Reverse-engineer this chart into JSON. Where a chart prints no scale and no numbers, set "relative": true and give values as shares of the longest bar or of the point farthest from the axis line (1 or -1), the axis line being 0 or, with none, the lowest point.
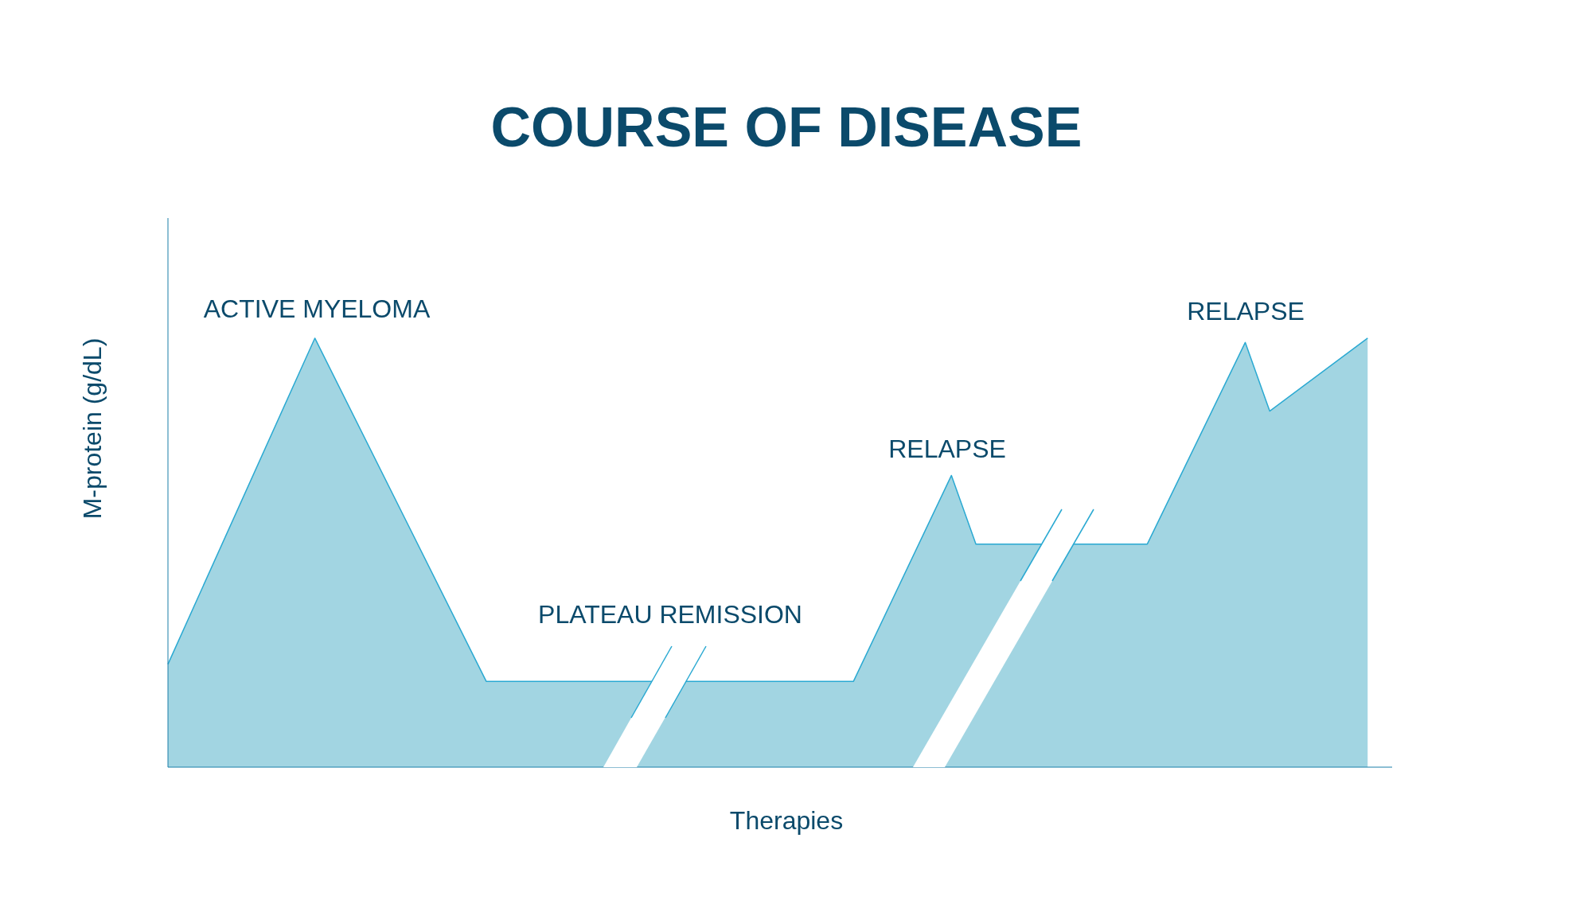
{
  "chart_data": {
    "type": "area",
    "title": "COURSE OF DISEASE",
    "xlabel": "Therapies",
    "ylabel": "M-protein (g/dL)",
    "relative": true,
    "categories": [
      null,
      null,
      null,
      null,
      null,
      null,
      null,
      null,
      null,
      null,
      null,
      null,
      null,
      null,
      null,
      null,
      null,
      null,
      null,
      null,
      null,
      null,
      null,
      null,
      null,
      null,
      null,
      null,
      null,
      null,
      null,
      null,
      null,
      null,
      null,
      null,
      null,
      null,
      null,
      null,
      null,
      null,
      null,
      null,
      null,
      null,
      null,
      null,
      null,
      null,
      null
    ],
    "series": [
      {
        "color": "#2aa9d2",
        "values": [
          0.24,
          null,
          null,
          null,
          null,
          null,
          1,
          null,
          null,
          null,
          null,
          null,
          null,
          0.2,
          null,
          null,
          null,
          null,
          null,
          0.2,
          null,
          null,
          0.2,
          null,
          null,
          null,
          null,
          null,
          0.2,
          null,
          null,
          null,
          0.68,
          0.52,
          null,
          null,
          null,
          null,
          0.52,
          null,
          0.52,
          null,
          null,
          null,
          0.99,
          0.83,
          null,
          null,
          null,
          1,
          null
        ]
      }
    ],
    "annotations": [
      "ACTIVE MYELOMA",
      "PLATEAU REMISSION",
      "RELAPSE",
      "RELAPSE"
    ]
  }
}
